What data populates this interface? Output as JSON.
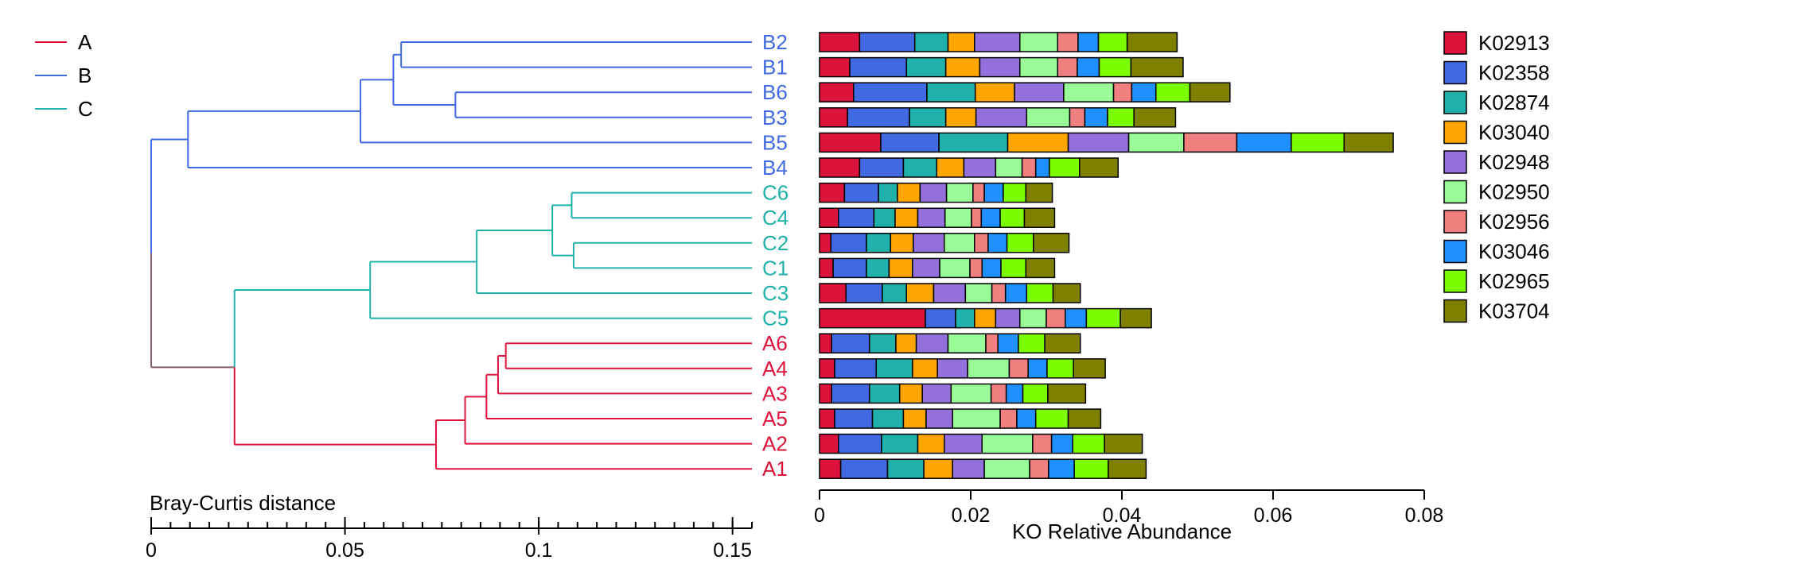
{
  "chart_data": [
    {
      "type": "dendrogram",
      "xlabel": "Bray-Curtis distance",
      "x_ticks": [
        0,
        0.05,
        0.1,
        0.15
      ],
      "xlim": [
        0,
        0.155
      ],
      "leaf_order": [
        "B2",
        "B1",
        "B6",
        "B3",
        "B5",
        "B4",
        "C6",
        "C4",
        "C2",
        "C1",
        "C3",
        "C5",
        "A6",
        "A4",
        "A3",
        "A5",
        "A2",
        "A1"
      ],
      "groups": [
        {
          "name": "A",
          "color": "#dc143c"
        },
        {
          "name": "B",
          "color": "#4169e1"
        },
        {
          "name": "C",
          "color": "#20b2aa"
        }
      ],
      "root_color": "#8b5f65",
      "leaf_group": {
        "B2": "B",
        "B1": "B",
        "B6": "B",
        "B3": "B",
        "B5": "B",
        "B4": "B",
        "C6": "C",
        "C4": "C",
        "C2": "C",
        "C1": "C",
        "C3": "C",
        "C5": "C",
        "A6": "A",
        "A4": "A",
        "A3": "A",
        "A5": "A",
        "A2": "A",
        "A1": "A"
      },
      "merges": [
        {
          "id": "b21",
          "a": "B2",
          "b": "B1",
          "height": 0.0645
        },
        {
          "id": "b63",
          "a": "B6",
          "b": "B3",
          "height": 0.0785
        },
        {
          "id": "b2163",
          "a": "b21",
          "b": "b63",
          "height": 0.0625
        },
        {
          "id": "b5",
          "a": "b2163",
          "b": "B5",
          "height": 0.054
        },
        {
          "id": "bAll",
          "a": "b5",
          "b": "B4",
          "height": 0.0095
        },
        {
          "id": "c64",
          "a": "C6",
          "b": "C4",
          "height": 0.1085
        },
        {
          "id": "c21",
          "a": "C2",
          "b": "C1",
          "height": 0.109
        },
        {
          "id": "c6421",
          "a": "c64",
          "b": "c21",
          "height": 0.1035
        },
        {
          "id": "c3",
          "a": "c6421",
          "b": "C3",
          "height": 0.084
        },
        {
          "id": "cAll",
          "a": "c3",
          "b": "C5",
          "height": 0.0565
        },
        {
          "id": "a64",
          "a": "A6",
          "b": "A4",
          "height": 0.0915
        },
        {
          "id": "a643",
          "a": "a64",
          "b": "A3",
          "height": 0.0895
        },
        {
          "id": "a6435",
          "a": "a643",
          "b": "A5",
          "height": 0.0865
        },
        {
          "id": "a2",
          "a": "a6435",
          "b": "A2",
          "height": 0.081
        },
        {
          "id": "a21",
          "a": "a2",
          "b": "A1",
          "height": 0.0735
        },
        {
          "id": "ac",
          "a": "cAll",
          "b": "a21",
          "height": 0.0215
        },
        {
          "id": "root",
          "a": "bAll",
          "b": "ac",
          "height": 0
        }
      ],
      "legend": [
        "A",
        "B",
        "C"
      ]
    },
    {
      "type": "bar",
      "orientation": "horizontal",
      "stacked": true,
      "xlabel": "KO Relative Abundance",
      "xlim": [
        0,
        0.08
      ],
      "x_ticks": [
        0,
        0.02,
        0.04,
        0.06,
        0.08
      ],
      "categories": [
        "B2",
        "B1",
        "B6",
        "B3",
        "B5",
        "B4",
        "C6",
        "C4",
        "C2",
        "C1",
        "C3",
        "C5",
        "A6",
        "A4",
        "A3",
        "A5",
        "A2",
        "A1"
      ],
      "series": [
        {
          "name": "K02913",
          "color": "#dc143c",
          "values": [
            0.0053,
            0.004,
            0.0045,
            0.0037,
            0.0081,
            0.0053,
            0.0033,
            0.0025,
            0.0015,
            0.0018,
            0.0035,
            0.014,
            0.0016,
            0.002,
            0.0016,
            0.002,
            0.0025,
            0.0028
          ]
        },
        {
          "name": "K02358",
          "color": "#4169e1",
          "values": [
            0.0073,
            0.0075,
            0.0097,
            0.0082,
            0.0077,
            0.0058,
            0.0045,
            0.0047,
            0.0047,
            0.0044,
            0.0048,
            0.004,
            0.005,
            0.0055,
            0.005,
            0.005,
            0.0057,
            0.0062
          ]
        },
        {
          "name": "K02874",
          "color": "#20b2aa",
          "values": [
            0.0044,
            0.0052,
            0.0064,
            0.0048,
            0.0091,
            0.0044,
            0.0025,
            0.0028,
            0.0032,
            0.003,
            0.0032,
            0.0025,
            0.0035,
            0.0048,
            0.004,
            0.0041,
            0.0048,
            0.0048
          ]
        },
        {
          "name": "K03040",
          "color": "#ffa500",
          "values": [
            0.0035,
            0.0045,
            0.0052,
            0.004,
            0.008,
            0.0036,
            0.003,
            0.003,
            0.003,
            0.0031,
            0.0036,
            0.0028,
            0.0027,
            0.0033,
            0.003,
            0.003,
            0.0035,
            0.0038
          ]
        },
        {
          "name": "K02948",
          "color": "#9370db",
          "values": [
            0.006,
            0.0053,
            0.0065,
            0.0067,
            0.008,
            0.0042,
            0.0035,
            0.0036,
            0.0041,
            0.0036,
            0.0042,
            0.0032,
            0.0042,
            0.004,
            0.0038,
            0.0035,
            0.005,
            0.0042
          ]
        },
        {
          "name": "K02950",
          "color": "#98fb98",
          "values": [
            0.005,
            0.005,
            0.0066,
            0.0057,
            0.0073,
            0.0035,
            0.0035,
            0.0035,
            0.004,
            0.004,
            0.0035,
            0.0035,
            0.005,
            0.0055,
            0.0053,
            0.0063,
            0.0067,
            0.006
          ]
        },
        {
          "name": "K02956",
          "color": "#f08080",
          "values": [
            0.0027,
            0.0026,
            0.0024,
            0.002,
            0.007,
            0.0018,
            0.0015,
            0.0013,
            0.0018,
            0.0016,
            0.0018,
            0.0025,
            0.0016,
            0.0025,
            0.002,
            0.0022,
            0.0025,
            0.0025
          ]
        },
        {
          "name": "K03046",
          "color": "#1e90ff",
          "values": [
            0.0027,
            0.0029,
            0.0032,
            0.003,
            0.0072,
            0.0018,
            0.0025,
            0.0025,
            0.0025,
            0.0025,
            0.0028,
            0.0028,
            0.0027,
            0.0025,
            0.0022,
            0.0025,
            0.0028,
            0.0034
          ]
        },
        {
          "name": "K02965",
          "color": "#7cfc00",
          "values": [
            0.0038,
            0.0042,
            0.0045,
            0.0035,
            0.007,
            0.004,
            0.003,
            0.0032,
            0.0035,
            0.0033,
            0.0035,
            0.0045,
            0.0035,
            0.0035,
            0.0033,
            0.0043,
            0.0042,
            0.0045
          ]
        },
        {
          "name": "K03704",
          "color": "#808000",
          "values": [
            0.0066,
            0.0069,
            0.0053,
            0.0055,
            0.0065,
            0.0051,
            0.0035,
            0.004,
            0.0047,
            0.0038,
            0.0036,
            0.0041,
            0.0047,
            0.0042,
            0.005,
            0.0043,
            0.005,
            0.005
          ]
        }
      ],
      "legend": {
        "placement": "right"
      }
    }
  ]
}
